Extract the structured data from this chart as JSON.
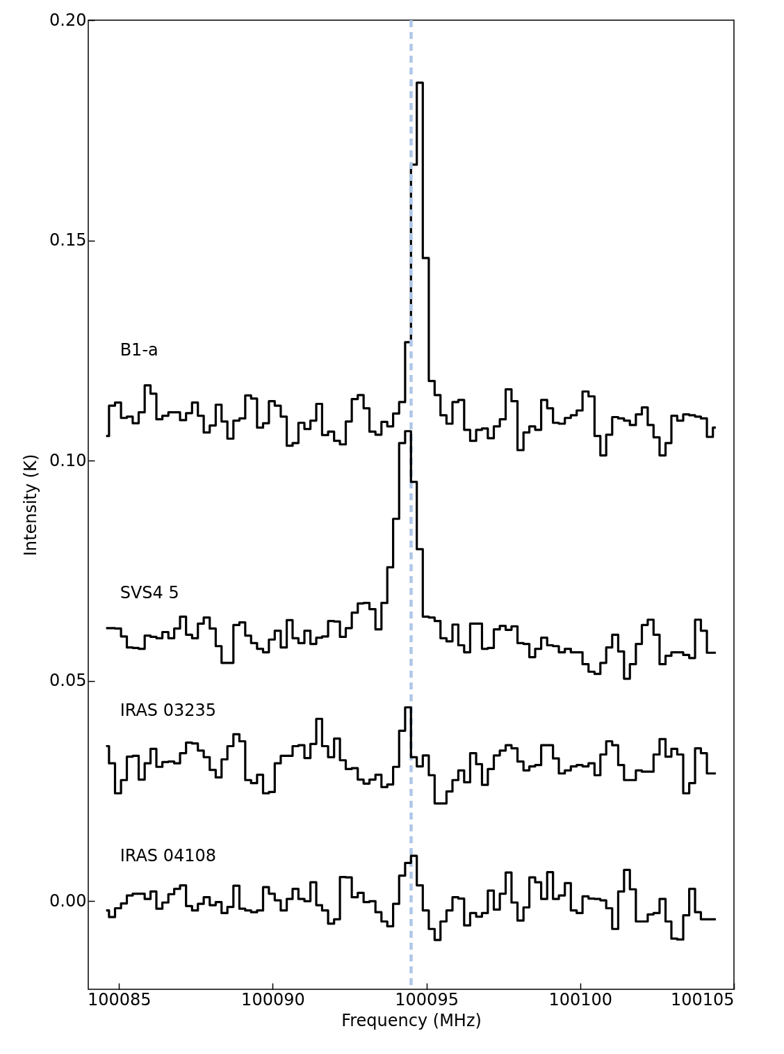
{
  "chart_data": {
    "type": "step",
    "xlabel": "Frequency (MHz)",
    "ylabel": "Intensity (K)",
    "xlim": [
      100084,
      100105
    ],
    "ylim": [
      -0.02,
      0.2
    ],
    "xticks": [
      100085,
      100090,
      100095,
      100100,
      100105
    ],
    "yticks": [
      {
        "value": 0,
        "label": "0.00"
      },
      {
        "value": 0.05,
        "label": "0.05"
      },
      {
        "value": 0.1,
        "label": "0.10"
      },
      {
        "value": 0.15,
        "label": "0.15"
      },
      {
        "value": 0.2,
        "label": "0.20"
      }
    ],
    "x": [
      100084.58,
      100084.77,
      100084.97,
      100085.16,
      100085.35,
      100085.54,
      100085.74,
      100085.93,
      100086.12,
      100086.31,
      100086.51,
      100086.7,
      100086.89,
      100087.08,
      100087.28,
      100087.47,
      100087.66,
      100087.85,
      100088.05,
      100088.24,
      100088.43,
      100088.62,
      100088.82,
      100089.01,
      100089.2,
      100089.39,
      100089.59,
      100089.78,
      100089.97,
      100090.16,
      100090.36,
      100090.55,
      100090.74,
      100090.93,
      100091.13,
      100091.32,
      100091.51,
      100091.7,
      100091.9,
      100092.09,
      100092.28,
      100092.47,
      100092.67,
      100092.86,
      100093.05,
      100093.24,
      100093.44,
      100093.63,
      100093.82,
      100094.01,
      100094.21,
      100094.4,
      100094.59,
      100094.78,
      100094.98,
      100095.17,
      100095.36,
      100095.55,
      100095.75,
      100095.94,
      100096.13,
      100096.32,
      100096.52,
      100096.71,
      100096.9,
      100097.09,
      100097.29,
      100097.48,
      100097.67,
      100097.86,
      100098.06,
      100098.25,
      100098.44,
      100098.63,
      100098.83,
      100099.02,
      100099.21,
      100099.4,
      100099.6,
      100099.79,
      100099.98,
      100100.17,
      100100.37,
      100100.56,
      100100.75,
      100100.94,
      100101.14,
      100101.33,
      100101.52,
      100101.71,
      100101.91,
      100102.1,
      100102.29,
      100102.48,
      100102.68,
      100102.87,
      100103.06,
      100103.25,
      100103.45,
      100103.64,
      100103.83,
      100104.02,
      100104.22,
      100104.41
    ],
    "series": [
      {
        "name": "B1-a",
        "color": "#000000",
        "values": [
          0.1056,
          0.1125,
          0.1132,
          0.1097,
          0.11,
          0.1085,
          0.111,
          0.1171,
          0.1152,
          0.1094,
          0.1102,
          0.111,
          0.111,
          0.1092,
          0.1108,
          0.1132,
          0.1102,
          0.1064,
          0.108,
          0.1127,
          0.1089,
          0.105,
          0.1091,
          0.1096,
          0.1148,
          0.1141,
          0.1075,
          0.1085,
          0.1135,
          0.1125,
          0.11,
          0.1034,
          0.104,
          0.1086,
          0.1072,
          0.1091,
          0.1129,
          0.1058,
          0.1066,
          0.1045,
          0.1037,
          0.1089,
          0.114,
          0.1149,
          0.1119,
          0.1066,
          0.1059,
          0.1088,
          0.1078,
          0.1107,
          0.1133,
          0.1269,
          0.1672,
          0.1858,
          0.146,
          0.1181,
          0.1149,
          0.1103,
          0.1084,
          0.1133,
          0.1138,
          0.107,
          0.1045,
          0.107,
          0.1073,
          0.1051,
          0.1078,
          0.1094,
          0.1162,
          0.1135,
          0.1024,
          0.1064,
          0.1078,
          0.107,
          0.1138,
          0.1119,
          0.1086,
          0.1084,
          0.1097,
          0.1103,
          0.1114,
          0.1157,
          0.1146,
          0.1056,
          0.1012,
          0.1059,
          0.1099,
          0.1096,
          0.1091,
          0.1081,
          0.1105,
          0.1121,
          0.1081,
          0.1053,
          0.1012,
          0.104,
          0.1102,
          0.1091,
          0.1105,
          0.1103,
          0.11,
          0.1096,
          0.1054,
          0.1075
        ]
      },
      {
        "name": "SVS4 5",
        "color": "#000000",
        "values": [
          0.062,
          0.062,
          0.0619,
          0.0601,
          0.0576,
          0.0575,
          0.0573,
          0.0603,
          0.06,
          0.0597,
          0.0611,
          0.0597,
          0.0619,
          0.0646,
          0.0605,
          0.0597,
          0.063,
          0.0644,
          0.0619,
          0.0579,
          0.0541,
          0.0541,
          0.0627,
          0.0633,
          0.0603,
          0.0586,
          0.0573,
          0.0565,
          0.0594,
          0.0614,
          0.0576,
          0.0638,
          0.0597,
          0.0586,
          0.0614,
          0.0584,
          0.0598,
          0.0601,
          0.0636,
          0.0635,
          0.06,
          0.062,
          0.0655,
          0.0676,
          0.0677,
          0.0663,
          0.0617,
          0.0677,
          0.0758,
          0.0868,
          0.104,
          0.1067,
          0.0952,
          0.0799,
          0.0646,
          0.0644,
          0.0636,
          0.0597,
          0.059,
          0.0628,
          0.0581,
          0.0565,
          0.063,
          0.063,
          0.0573,
          0.0575,
          0.0617,
          0.0625,
          0.0616,
          0.0624,
          0.0586,
          0.0584,
          0.0554,
          0.0573,
          0.0598,
          0.0581,
          0.0579,
          0.0565,
          0.0573,
          0.0565,
          0.0565,
          0.0538,
          0.0521,
          0.0516,
          0.0541,
          0.0576,
          0.0605,
          0.0567,
          0.0505,
          0.0538,
          0.0584,
          0.0627,
          0.0639,
          0.0605,
          0.0538,
          0.0557,
          0.0565,
          0.0565,
          0.0559,
          0.0552,
          0.0639,
          0.0614,
          0.0564,
          0.0564
        ]
      },
      {
        "name": "IRAS 03235",
        "color": "#000000",
        "values": [
          0.0352,
          0.0313,
          0.0245,
          0.0275,
          0.0328,
          0.033,
          0.0276,
          0.0313,
          0.0346,
          0.0305,
          0.0316,
          0.0317,
          0.0313,
          0.0336,
          0.036,
          0.0358,
          0.0342,
          0.0327,
          0.0298,
          0.0281,
          0.0322,
          0.0352,
          0.0379,
          0.0363,
          0.0275,
          0.0268,
          0.0287,
          0.0245,
          0.0248,
          0.0313,
          0.033,
          0.033,
          0.0352,
          0.0354,
          0.0325,
          0.0357,
          0.0414,
          0.0352,
          0.0327,
          0.0369,
          0.032,
          0.03,
          0.0302,
          0.0276,
          0.0267,
          0.0276,
          0.0287,
          0.0259,
          0.0265,
          0.0305,
          0.0387,
          0.044,
          0.0327,
          0.0306,
          0.0331,
          0.0286,
          0.0222,
          0.0222,
          0.0249,
          0.0275,
          0.0297,
          0.027,
          0.0336,
          0.0311,
          0.0264,
          0.03,
          0.0331,
          0.0342,
          0.0354,
          0.0347,
          0.0317,
          0.0297,
          0.0306,
          0.0309,
          0.0354,
          0.0354,
          0.0324,
          0.029,
          0.0297,
          0.0306,
          0.0309,
          0.0306,
          0.0313,
          0.0286,
          0.0333,
          0.0363,
          0.0354,
          0.0309,
          0.0275,
          0.0275,
          0.0297,
          0.0294,
          0.0294,
          0.0333,
          0.0368,
          0.0328,
          0.0346,
          0.0333,
          0.0245,
          0.0268,
          0.0347,
          0.0336,
          0.029,
          0.029
        ]
      },
      {
        "name": "IRAS 04108",
        "color": "#000000",
        "values": [
          -0.0021,
          -0.0036,
          -0.0016,
          -0.0005,
          0.0013,
          0.0017,
          0.0017,
          0.0005,
          0.0022,
          -0.0017,
          -0.0003,
          0.0016,
          0.0028,
          0.0036,
          -0.0011,
          -0.0021,
          -0.0006,
          0.0009,
          -0.0009,
          -0.0002,
          -0.0027,
          -0.0013,
          0.0035,
          -0.0017,
          -0.0021,
          -0.0025,
          -0.0021,
          0.0032,
          0.0017,
          0.0002,
          -0.0021,
          0.0005,
          0.0028,
          0.0005,
          0.0,
          0.0043,
          -0.0009,
          -0.0021,
          -0.0051,
          -0.0041,
          0.0055,
          0.0054,
          0.0009,
          0.0019,
          -0.0002,
          0.0,
          -0.0025,
          -0.0046,
          -0.0057,
          -0.0006,
          0.0058,
          0.0087,
          0.0103,
          0.0036,
          -0.0021,
          -0.0063,
          -0.0088,
          -0.0046,
          -0.0021,
          0.0009,
          0.0006,
          -0.0055,
          -0.0027,
          -0.0035,
          -0.0027,
          0.0024,
          -0.0019,
          0.0017,
          0.0065,
          -0.0003,
          -0.0044,
          -0.0014,
          0.0054,
          0.0043,
          0.0005,
          0.0066,
          0.0005,
          0.0013,
          0.0041,
          -0.0021,
          -0.0027,
          0.0011,
          0.0006,
          0.0005,
          0.0002,
          -0.0016,
          -0.0063,
          0.0022,
          0.0071,
          0.0027,
          -0.0046,
          -0.0046,
          -0.003,
          -0.0027,
          0.0005,
          -0.0046,
          -0.0085,
          -0.0087,
          -0.0032,
          0.0028,
          -0.0025,
          -0.0041,
          -0.0041,
          -0.0041
        ]
      }
    ],
    "ref_lines": [
      {
        "axis": "x",
        "value": 100094.5,
        "color": "#aec7e8",
        "line_style": "dashed"
      }
    ]
  }
}
